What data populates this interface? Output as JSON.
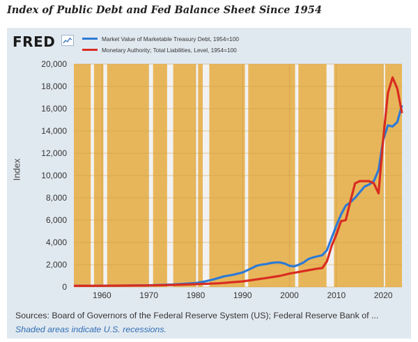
{
  "page": {
    "title": "Index of Public Debt and Fed Balance Sheet Since 1954"
  },
  "header": {
    "logo_text": "FRED",
    "logo_icon": "line-chart-icon"
  },
  "footer": {
    "source": "Sources: Board of Governors of the Federal Reserve System (US); Federal Reserve Bank of ...",
    "note": "Shaded areas indicate U.S. recessions."
  },
  "colors": {
    "plot_background": "#e8b65a",
    "recession_band": "#f2f2f2",
    "panel_background": "#e1e9f0",
    "note_text": "#2e6db4"
  },
  "chart_data": {
    "type": "line",
    "title": "",
    "xlabel": "",
    "ylabel": "Index",
    "xlim": [
      1954,
      2024
    ],
    "ylim": [
      0,
      20000
    ],
    "grid": true,
    "legend_position": "top-left",
    "x_ticks": [
      1960,
      1970,
      1980,
      1990,
      2000,
      2010,
      2020
    ],
    "x_tick_labels": [
      "1960",
      "1970",
      "1980",
      "1990",
      "2000",
      "2010",
      "2020"
    ],
    "y_ticks": [
      0,
      2000,
      4000,
      6000,
      8000,
      10000,
      12000,
      14000,
      16000,
      18000,
      20000
    ],
    "y_tick_labels": [
      "0",
      "2,000",
      "4,000",
      "6,000",
      "8,000",
      "10,000",
      "12,000",
      "14,000",
      "16,000",
      "18,000",
      "20,000"
    ],
    "recessions": [
      [
        1957.6,
        1958.3
      ],
      [
        1960.3,
        1961.1
      ],
      [
        1969.9,
        1970.9
      ],
      [
        1973.9,
        1975.2
      ],
      [
        1980.0,
        1980.5
      ],
      [
        1981.5,
        1982.9
      ],
      [
        1990.5,
        1991.2
      ],
      [
        2001.2,
        2001.9
      ],
      [
        2007.9,
        2009.5
      ],
      [
        2020.1,
        2020.3
      ]
    ],
    "series": [
      {
        "name": "Market Value of Marketable Treasury Debt, 1954=100",
        "color": "#2d7ad6",
        "points": [
          [
            1954,
            100
          ],
          [
            1960,
            110
          ],
          [
            1965,
            125
          ],
          [
            1970,
            150
          ],
          [
            1975,
            220
          ],
          [
            1978,
            300
          ],
          [
            1980,
            350
          ],
          [
            1982,
            500
          ],
          [
            1984,
            700
          ],
          [
            1986,
            950
          ],
          [
            1988,
            1100
          ],
          [
            1990,
            1300
          ],
          [
            1992,
            1700
          ],
          [
            1993,
            1900
          ],
          [
            1994,
            2000
          ],
          [
            1995,
            2050
          ],
          [
            1996,
            2150
          ],
          [
            1997,
            2200
          ],
          [
            1998,
            2200
          ],
          [
            1999,
            2100
          ],
          [
            2000,
            1900
          ],
          [
            2001,
            1850
          ],
          [
            2002,
            2000
          ],
          [
            2003,
            2200
          ],
          [
            2004,
            2500
          ],
          [
            2005,
            2650
          ],
          [
            2006,
            2750
          ],
          [
            2007,
            2850
          ],
          [
            2008,
            3300
          ],
          [
            2009,
            4400
          ],
          [
            2010,
            5500
          ],
          [
            2011,
            6500
          ],
          [
            2012,
            7300
          ],
          [
            2013,
            7600
          ],
          [
            2014,
            8000
          ],
          [
            2015,
            8500
          ],
          [
            2016,
            9000
          ],
          [
            2017,
            9200
          ],
          [
            2018,
            9500
          ],
          [
            2019,
            10500
          ],
          [
            2020,
            13200
          ],
          [
            2021,
            14500
          ],
          [
            2022,
            14400
          ],
          [
            2023,
            14800
          ],
          [
            2024,
            16300
          ]
        ]
      },
      {
        "name": "Monetary Authority; Total Liabilities, Level, 1954=100",
        "color": "#d82c20",
        "points": [
          [
            1954,
            100
          ],
          [
            1960,
            105
          ],
          [
            1965,
            125
          ],
          [
            1970,
            140
          ],
          [
            1975,
            180
          ],
          [
            1980,
            250
          ],
          [
            1985,
            330
          ],
          [
            1990,
            500
          ],
          [
            1995,
            800
          ],
          [
            1998,
            1000
          ],
          [
            2000,
            1200
          ],
          [
            2002,
            1350
          ],
          [
            2004,
            1500
          ],
          [
            2006,
            1650
          ],
          [
            2007,
            1700
          ],
          [
            2008,
            2300
          ],
          [
            2009,
            3700
          ],
          [
            2010,
            4700
          ],
          [
            2011,
            5900
          ],
          [
            2012,
            6000
          ],
          [
            2013,
            7700
          ],
          [
            2014,
            9300
          ],
          [
            2015,
            9500
          ],
          [
            2016,
            9500
          ],
          [
            2017,
            9500
          ],
          [
            2018,
            9300
          ],
          [
            2019,
            8400
          ],
          [
            2020,
            13300
          ],
          [
            2021,
            17400
          ],
          [
            2022,
            18800
          ],
          [
            2023,
            17800
          ],
          [
            2024,
            15600
          ]
        ]
      }
    ]
  }
}
